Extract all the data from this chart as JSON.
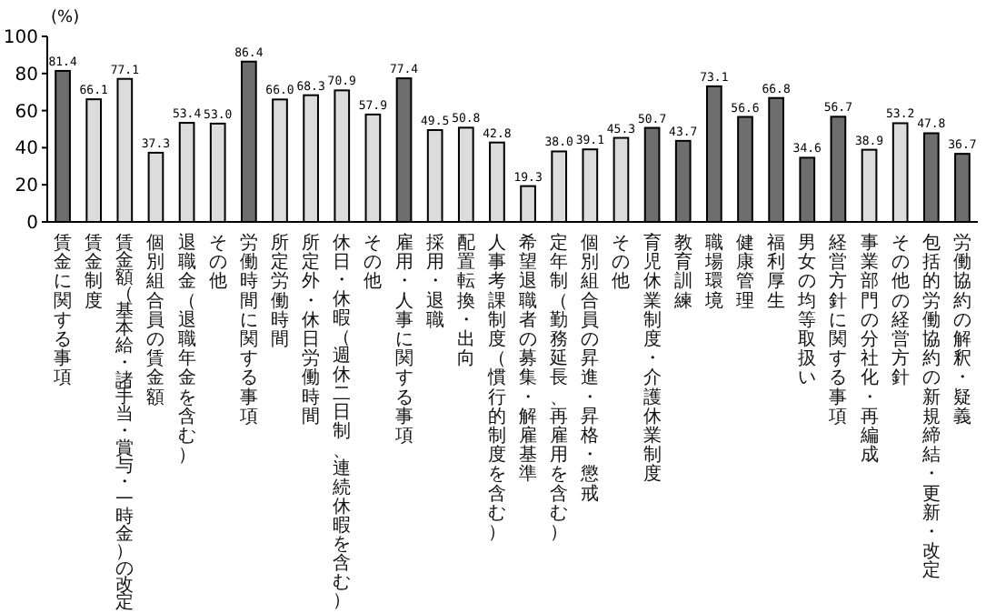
{
  "chart_data": {
    "type": "bar",
    "ylabel": "(%)",
    "categories": [
      "賃金に関する事項",
      "賃金制度",
      "賃金額（基本給・諸手当・賞与・一時金）の改定",
      "個別組合員の賃金額",
      "退職金（退職年金を含む）",
      "その他",
      "労働時間に関する事項",
      "所定労働時間",
      "所定外・休日労働時間",
      "休日・休暇（週休二日制、連続休暇を含む）",
      "その他",
      "雇用・人事に関する事項",
      "採用・退職",
      "配置転換・出向",
      "人事考課制度（慣行的制度を含む）",
      "希望退職者の募集・解雇基準",
      "定年制（勤務延長、再雇用を含む）",
      "個別組合員の昇進・昇格・懲戒",
      "その他",
      "育児休業制度・介護休業制度",
      "教育訓練",
      "職場環境",
      "健康管理",
      "福利厚生",
      "男女の均等取扱い",
      "経営方針に関する事項",
      "事業部門の分社化・再編成",
      "その他の経営方針",
      "包括的労働協約の新規締結・更新・改定",
      "労働協約の解釈・疑義"
    ],
    "values": [
      81.4,
      66.1,
      77.1,
      37.3,
      53.4,
      53.0,
      86.4,
      66.0,
      68.3,
      70.9,
      57.9,
      77.4,
      49.5,
      50.8,
      42.8,
      19.3,
      38.0,
      39.1,
      45.3,
      50.7,
      43.7,
      73.1,
      56.6,
      66.8,
      34.6,
      56.7,
      38.9,
      53.2,
      47.8,
      36.7
    ],
    "colors": [
      "#6e6e6e",
      "#dcdcdc",
      "#dcdcdc",
      "#dcdcdc",
      "#dcdcdc",
      "#dcdcdc",
      "#6e6e6e",
      "#dcdcdc",
      "#dcdcdc",
      "#dcdcdc",
      "#dcdcdc",
      "#6e6e6e",
      "#dcdcdc",
      "#dcdcdc",
      "#dcdcdc",
      "#dcdcdc",
      "#dcdcdc",
      "#dcdcdc",
      "#dcdcdc",
      "#6e6e6e",
      "#6e6e6e",
      "#6e6e6e",
      "#6e6e6e",
      "#6e6e6e",
      "#6e6e6e",
      "#6e6e6e",
      "#dcdcdc",
      "#dcdcdc",
      "#6e6e6e",
      "#6e6e6e"
    ],
    "value_labels": [
      "81.4",
      "66.1",
      "77.1",
      "37.3",
      "53.4",
      "53.0",
      "86.4",
      "66.0",
      "68.3",
      "70.9",
      "57.9",
      "77.4",
      "49.5",
      "50.8",
      "42.8",
      "19.3",
      "38.0",
      "39.1",
      "45.3",
      "50.7",
      "43.7",
      "73.1",
      "56.6",
      "66.8",
      "34.6",
      "56.7",
      "38.9",
      "53.2",
      "47.8",
      "36.7"
    ],
    "ylim": [
      0,
      100
    ],
    "yticks": [
      0,
      20,
      40,
      60,
      80,
      100
    ]
  }
}
